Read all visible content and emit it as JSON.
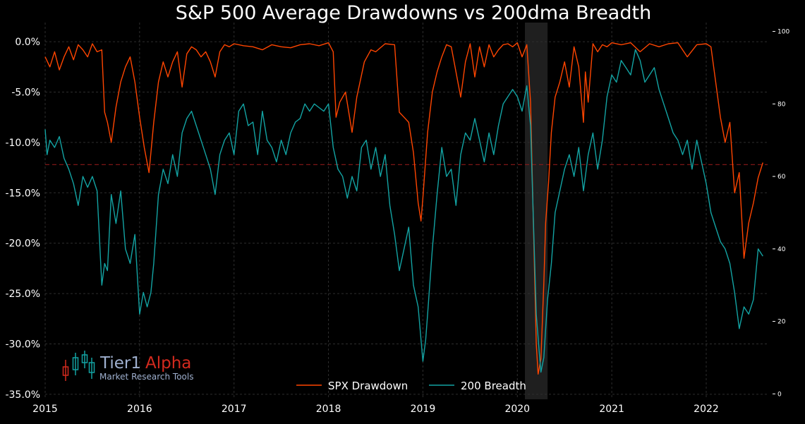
{
  "chart_data": {
    "type": "line",
    "title": "S&P 500 Average Drawdowns vs 200dma Breadth",
    "xlabel": "",
    "ylabel": "",
    "x_ticks": [
      "2015",
      "2016",
      "2017",
      "2018",
      "2019",
      "2020",
      "2021",
      "2022"
    ],
    "x_range": [
      2015.0,
      2022.65
    ],
    "y_left": {
      "range": [
        -35.5,
        1.2
      ],
      "ticks": [
        0,
        -5,
        -10,
        -15,
        -20,
        -25,
        -30,
        -35
      ],
      "tick_labels": [
        "0.0%",
        "-5.0%",
        "-10.0%",
        "-15.0%",
        "-20.0%",
        "-25.0%",
        "-30.0%",
        "-35.0%"
      ]
    },
    "y_right": {
      "range": [
        -1.5,
        100.5
      ],
      "ticks": [
        0,
        20,
        40,
        60,
        80,
        100
      ],
      "tick_labels": [
        "0",
        "20",
        "40",
        "60",
        "80",
        "100"
      ]
    },
    "reference_line": {
      "axis": "left",
      "value": -12.2,
      "color": "#8b1a1a",
      "style": "dashed"
    },
    "shaded_region": {
      "x_start": 2020.08,
      "x_end": 2020.32,
      "color": "#2a2a2a"
    },
    "grid": true,
    "legend_position": "bottom-center",
    "series": [
      {
        "name": "SPX Drawdown",
        "axis": "left",
        "color": "#ff4500",
        "x": [
          2015.0,
          2015.05,
          2015.1,
          2015.15,
          2015.2,
          2015.25,
          2015.3,
          2015.35,
          2015.4,
          2015.45,
          2015.5,
          2015.55,
          2015.6,
          2015.63,
          2015.66,
          2015.7,
          2015.75,
          2015.8,
          2015.85,
          2015.9,
          2015.95,
          2016.0,
          2016.05,
          2016.1,
          2016.12,
          2016.15,
          2016.2,
          2016.25,
          2016.3,
          2016.35,
          2016.4,
          2016.45,
          2016.5,
          2016.55,
          2016.6,
          2016.65,
          2016.7,
          2016.75,
          2016.8,
          2016.85,
          2016.9,
          2016.95,
          2017.0,
          2017.1,
          2017.2,
          2017.3,
          2017.4,
          2017.5,
          2017.6,
          2017.7,
          2017.8,
          2017.9,
          2018.0,
          2018.05,
          2018.08,
          2018.12,
          2018.18,
          2018.25,
          2018.3,
          2018.38,
          2018.45,
          2018.5,
          2018.6,
          2018.7,
          2018.75,
          2018.8,
          2018.85,
          2018.9,
          2018.95,
          2018.98,
          2019.0,
          2019.05,
          2019.1,
          2019.15,
          2019.2,
          2019.25,
          2019.3,
          2019.35,
          2019.4,
          2019.45,
          2019.5,
          2019.55,
          2019.6,
          2019.65,
          2019.7,
          2019.75,
          2019.8,
          2019.85,
          2019.9,
          2019.95,
          2020.0,
          2020.05,
          2020.1,
          2020.14,
          2020.17,
          2020.2,
          2020.22,
          2020.25,
          2020.28,
          2020.3,
          2020.33,
          2020.36,
          2020.4,
          2020.45,
          2020.5,
          2020.55,
          2020.6,
          2020.65,
          2020.7,
          2020.72,
          2020.75,
          2020.8,
          2020.85,
          2020.9,
          2020.95,
          2021.0,
          2021.1,
          2021.2,
          2021.3,
          2021.4,
          2021.5,
          2021.6,
          2021.7,
          2021.8,
          2021.9,
          2022.0,
          2022.05,
          2022.1,
          2022.15,
          2022.2,
          2022.25,
          2022.3,
          2022.35,
          2022.4,
          2022.45,
          2022.5,
          2022.55,
          2022.6
        ],
        "values": [
          -1.5,
          -2.5,
          -1.0,
          -2.8,
          -1.5,
          -0.5,
          -1.8,
          -0.3,
          -0.8,
          -1.5,
          -0.2,
          -1.0,
          -0.8,
          -7.0,
          -8.0,
          -10.0,
          -6.5,
          -4.0,
          -2.5,
          -1.5,
          -4.0,
          -7.5,
          -10.5,
          -13.0,
          -11.0,
          -8.0,
          -4.0,
          -2.0,
          -3.5,
          -2.0,
          -1.0,
          -4.5,
          -1.2,
          -0.5,
          -0.8,
          -1.5,
          -1.0,
          -2.0,
          -3.5,
          -1.0,
          -0.3,
          -0.5,
          -0.2,
          -0.4,
          -0.5,
          -0.8,
          -0.3,
          -0.5,
          -0.6,
          -0.3,
          -0.2,
          -0.4,
          -0.1,
          -1.0,
          -7.5,
          -6.0,
          -5.0,
          -9.0,
          -5.5,
          -2.0,
          -0.8,
          -1.0,
          -0.2,
          -0.3,
          -7.0,
          -7.5,
          -8.0,
          -11.0,
          -16.0,
          -17.8,
          -15.5,
          -9.0,
          -5.0,
          -3.0,
          -1.5,
          -0.3,
          -0.5,
          -3.0,
          -5.5,
          -2.0,
          -0.2,
          -3.5,
          -0.5,
          -2.5,
          -0.3,
          -1.5,
          -0.8,
          -0.3,
          -0.2,
          -0.5,
          -0.1,
          -1.5,
          -0.3,
          -6.0,
          -18.0,
          -30.0,
          -33.0,
          -31.5,
          -24.0,
          -18.0,
          -14.0,
          -9.0,
          -5.5,
          -4.0,
          -2.0,
          -4.5,
          -0.5,
          -2.5,
          -8.0,
          -3.0,
          -6.0,
          -0.2,
          -1.0,
          -0.3,
          -0.5,
          -0.1,
          -0.3,
          -0.1,
          -1.0,
          -0.2,
          -0.5,
          -0.2,
          -0.1,
          -1.5,
          -0.3,
          -0.2,
          -0.5,
          -4.0,
          -7.5,
          -10.0,
          -8.0,
          -15.0,
          -13.0,
          -21.5,
          -18.0,
          -16.0,
          -13.5,
          -12.0
        ]
      },
      {
        "name": "200 Breadth",
        "axis": "right",
        "color": "#13a3a3",
        "x": [
          2015.0,
          2015.02,
          2015.05,
          2015.1,
          2015.15,
          2015.2,
          2015.25,
          2015.3,
          2015.35,
          2015.4,
          2015.45,
          2015.5,
          2015.55,
          2015.6,
          2015.63,
          2015.66,
          2015.7,
          2015.75,
          2015.8,
          2015.85,
          2015.9,
          2015.95,
          2016.0,
          2016.04,
          2016.08,
          2016.12,
          2016.15,
          2016.2,
          2016.25,
          2016.3,
          2016.35,
          2016.4,
          2016.45,
          2016.5,
          2016.55,
          2016.6,
          2016.65,
          2016.7,
          2016.75,
          2016.8,
          2016.85,
          2016.9,
          2016.95,
          2017.0,
          2017.05,
          2017.1,
          2017.15,
          2017.2,
          2017.25,
          2017.3,
          2017.35,
          2017.4,
          2017.45,
          2017.5,
          2017.55,
          2017.6,
          2017.65,
          2017.7,
          2017.75,
          2017.8,
          2017.85,
          2017.9,
          2017.95,
          2018.0,
          2018.05,
          2018.1,
          2018.15,
          2018.2,
          2018.25,
          2018.3,
          2018.35,
          2018.4,
          2018.45,
          2018.5,
          2018.55,
          2018.6,
          2018.65,
          2018.7,
          2018.75,
          2018.8,
          2018.85,
          2018.9,
          2018.95,
          2019.0,
          2019.03,
          2019.05,
          2019.1,
          2019.15,
          2019.2,
          2019.25,
          2019.3,
          2019.35,
          2019.4,
          2019.45,
          2019.5,
          2019.55,
          2019.6,
          2019.65,
          2019.7,
          2019.75,
          2019.8,
          2019.85,
          2019.9,
          2019.95,
          2020.0,
          2020.05,
          2020.1,
          2020.14,
          2020.17,
          2020.2,
          2020.23,
          2020.25,
          2020.28,
          2020.32,
          2020.36,
          2020.4,
          2020.45,
          2020.5,
          2020.55,
          2020.6,
          2020.65,
          2020.7,
          2020.75,
          2020.8,
          2020.85,
          2020.9,
          2020.95,
          2021.0,
          2021.05,
          2021.1,
          2021.15,
          2021.2,
          2021.25,
          2021.3,
          2021.35,
          2021.4,
          2021.45,
          2021.5,
          2021.55,
          2021.6,
          2021.65,
          2021.7,
          2021.75,
          2021.8,
          2021.85,
          2021.9,
          2021.95,
          2022.0,
          2022.05,
          2022.1,
          2022.15,
          2022.2,
          2022.25,
          2022.3,
          2022.35,
          2022.4,
          2022.45,
          2022.5,
          2022.55,
          2022.6
        ],
        "values": [
          73,
          66,
          70,
          68,
          71,
          65,
          62,
          58,
          52,
          60,
          57,
          60,
          56,
          30,
          36,
          34,
          55,
          47,
          56,
          40,
          36,
          44,
          22,
          28,
          24,
          28,
          36,
          55,
          62,
          58,
          66,
          60,
          72,
          76,
          78,
          74,
          70,
          66,
          62,
          55,
          66,
          70,
          72,
          66,
          78,
          80,
          74,
          75,
          66,
          78,
          70,
          68,
          64,
          70,
          66,
          72,
          75,
          76,
          80,
          78,
          80,
          79,
          78,
          80,
          68,
          62,
          60,
          54,
          60,
          56,
          68,
          70,
          62,
          68,
          60,
          66,
          52,
          44,
          34,
          40,
          46,
          30,
          24,
          9,
          15,
          22,
          40,
          55,
          68,
          60,
          62,
          52,
          66,
          72,
          70,
          76,
          70,
          64,
          72,
          66,
          74,
          80,
          82,
          84,
          82,
          78,
          85,
          74,
          48,
          22,
          12,
          6,
          10,
          26,
          36,
          50,
          56,
          62,
          66,
          60,
          68,
          56,
          66,
          72,
          62,
          70,
          82,
          88,
          86,
          92,
          90,
          88,
          95,
          92,
          86,
          88,
          90,
          84,
          80,
          76,
          72,
          70,
          66,
          70,
          62,
          70,
          64,
          58,
          50,
          46,
          42,
          40,
          36,
          28,
          18,
          24,
          22,
          26,
          40,
          38
        ]
      }
    ]
  },
  "logo": {
    "main_text": "Tier1",
    "accent_text": "Alpha",
    "subtitle": "Market  Research Tools"
  },
  "colors": {
    "background": "#000000",
    "grid": "#2e2e2e",
    "drawdown": "#ff4500",
    "breadth": "#13a3a3",
    "logo_main": "#9fb0cf",
    "logo_accent": "#d42a1e"
  }
}
